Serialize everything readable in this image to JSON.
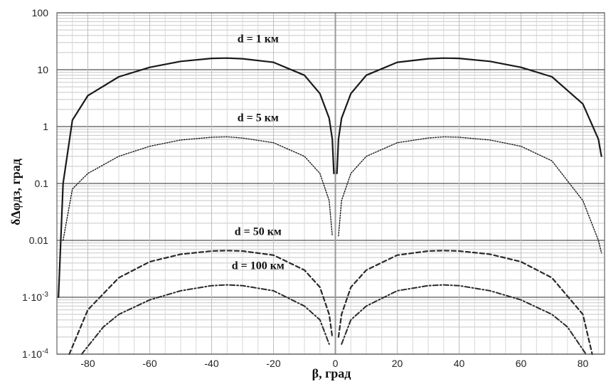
{
  "chart_data": {
    "type": "line",
    "title": "",
    "xlabel": "β, град",
    "ylabel": "δΔφдз, град",
    "xlim": [
      -90,
      87
    ],
    "ylim": [
      0.0001,
      100
    ],
    "yscale": "log",
    "grid": true,
    "x_ticks": [
      -80,
      -60,
      -40,
      -20,
      0,
      20,
      40,
      60,
      80
    ],
    "x_tick_labels": [
      "-80",
      "-60",
      "-40",
      "-20",
      "0",
      "20",
      "40",
      "60",
      "80"
    ],
    "y_ticks": [
      100,
      10,
      1,
      0.1,
      0.01,
      0.001,
      0.0001
    ],
    "y_tick_labels": [
      {
        "base": "100",
        "exp": ""
      },
      {
        "base": "10",
        "exp": ""
      },
      {
        "base": "1",
        "exp": ""
      },
      {
        "base": "0.1",
        "exp": ""
      },
      {
        "base": "0.01",
        "exp": ""
      },
      {
        "base": "1·10",
        "exp": "-3"
      },
      {
        "base": "1·10",
        "exp": "-4"
      }
    ],
    "series": [
      {
        "name": "d = 1 км",
        "style": "solid",
        "x": [
          -89.5,
          -88,
          -85,
          -80,
          -70,
          -60,
          -50,
          -40,
          -35,
          -30,
          -20,
          -10,
          -5,
          -2,
          -1,
          -0.5,
          0.5,
          1,
          2,
          5,
          10,
          20,
          30,
          35,
          40,
          50,
          60,
          70,
          80,
          85,
          86
        ],
        "y": [
          0.001,
          0.1,
          1.3,
          3.5,
          7.5,
          11,
          14,
          15.8,
          16,
          15.6,
          13.5,
          8,
          3.8,
          1.4,
          0.6,
          0.15,
          0.15,
          0.6,
          1.4,
          3.8,
          8,
          13.5,
          15.6,
          16,
          15.8,
          14,
          11,
          7.5,
          2.5,
          0.6,
          0.3
        ]
      },
      {
        "name": "d = 5 км",
        "style": "dotted",
        "x": [
          -88,
          -85,
          -80,
          -70,
          -60,
          -50,
          -40,
          -35,
          -30,
          -20,
          -10,
          -5,
          -2,
          -1,
          1,
          2,
          5,
          10,
          20,
          30,
          35,
          40,
          50,
          60,
          70,
          80,
          85,
          86
        ],
        "y": [
          0.01,
          0.08,
          0.15,
          0.3,
          0.45,
          0.58,
          0.65,
          0.66,
          0.63,
          0.52,
          0.3,
          0.15,
          0.05,
          0.012,
          0.012,
          0.05,
          0.15,
          0.3,
          0.52,
          0.63,
          0.66,
          0.65,
          0.58,
          0.45,
          0.25,
          0.05,
          0.01,
          0.006
        ]
      },
      {
        "name": "d = 50 км",
        "style": "dashed",
        "x": [
          -86,
          -80,
          -70,
          -60,
          -50,
          -40,
          -35,
          -30,
          -20,
          -10,
          -5,
          -2,
          -1,
          1,
          2,
          5,
          10,
          20,
          30,
          35,
          40,
          50,
          60,
          70,
          80,
          83
        ],
        "y": [
          0.0001,
          0.0006,
          0.0022,
          0.0042,
          0.0057,
          0.0065,
          0.0066,
          0.0065,
          0.0055,
          0.003,
          0.0015,
          0.0005,
          0.0002,
          0.0002,
          0.0005,
          0.0015,
          0.003,
          0.0055,
          0.0065,
          0.0066,
          0.0065,
          0.0057,
          0.0042,
          0.0022,
          0.0005,
          0.0001
        ]
      },
      {
        "name": "d = 100 км",
        "style": "dashdot",
        "x": [
          -82,
          -75,
          -70,
          -60,
          -50,
          -40,
          -35,
          -30,
          -20,
          -10,
          -5,
          -2,
          2,
          5,
          10,
          20,
          30,
          35,
          40,
          50,
          60,
          70,
          75,
          81
        ],
        "y": [
          0.0001,
          0.0003,
          0.0005,
          0.0009,
          0.0013,
          0.0016,
          0.00165,
          0.0016,
          0.0013,
          0.0007,
          0.0004,
          0.00015,
          0.00015,
          0.0004,
          0.0007,
          0.0013,
          0.0016,
          0.00165,
          0.0016,
          0.0013,
          0.0009,
          0.0005,
          0.0003,
          0.0001
        ]
      }
    ]
  }
}
